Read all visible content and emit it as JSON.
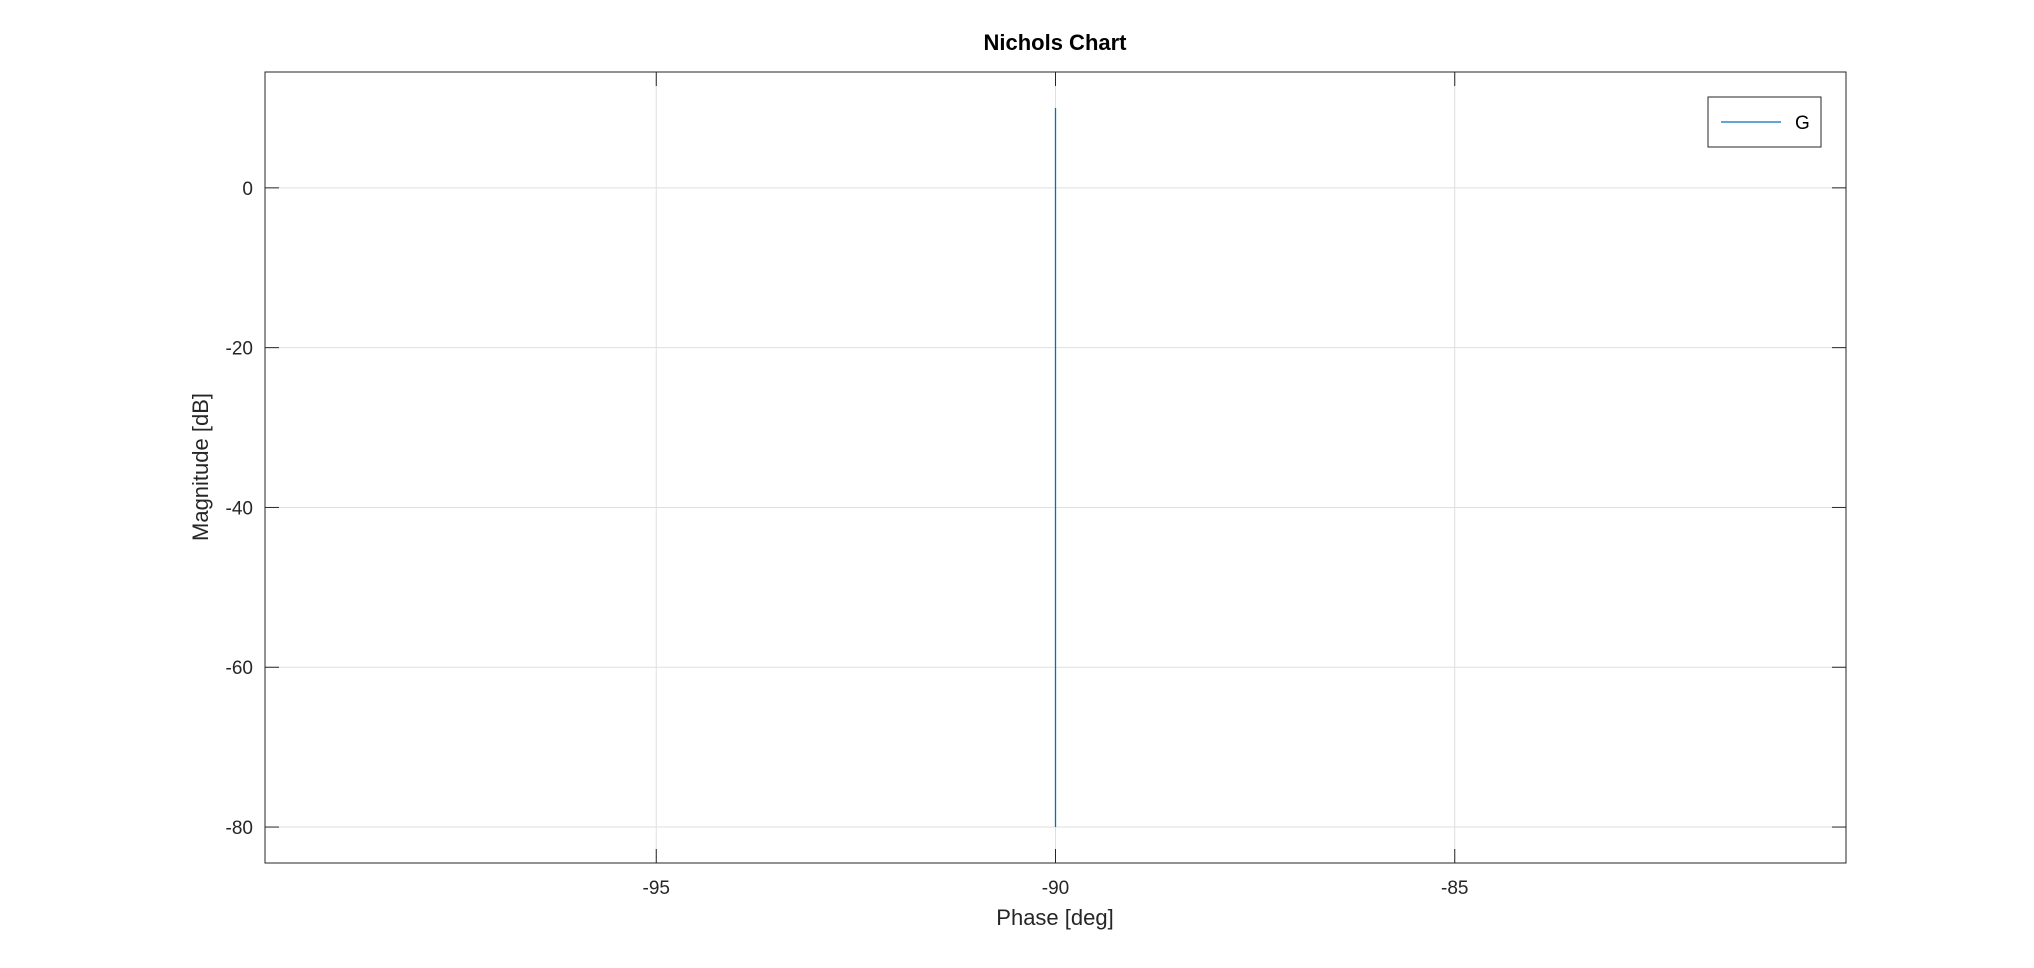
{
  "chart_data": {
    "type": "line",
    "title": "Nichols Chart",
    "xlabel": "Phase [deg]",
    "ylabel": "Magnitude [dB]",
    "xlim": [
      -99.9,
      -80.1
    ],
    "ylim": [
      -84.5,
      14.5
    ],
    "xticks": [
      -95,
      -90,
      -85
    ],
    "yticks": [
      0,
      -20,
      -40,
      -60,
      -80
    ],
    "xtick_labels": [
      "-95",
      "-90",
      "-85"
    ],
    "ytick_labels": [
      "0",
      "-20",
      "-40",
      "-60",
      "-80"
    ],
    "grid": true,
    "legend_position": "top-right",
    "series": [
      {
        "name": "G",
        "color": "#0072bd",
        "x": [
          -90,
          -90
        ],
        "y": [
          10,
          -80
        ]
      }
    ]
  }
}
